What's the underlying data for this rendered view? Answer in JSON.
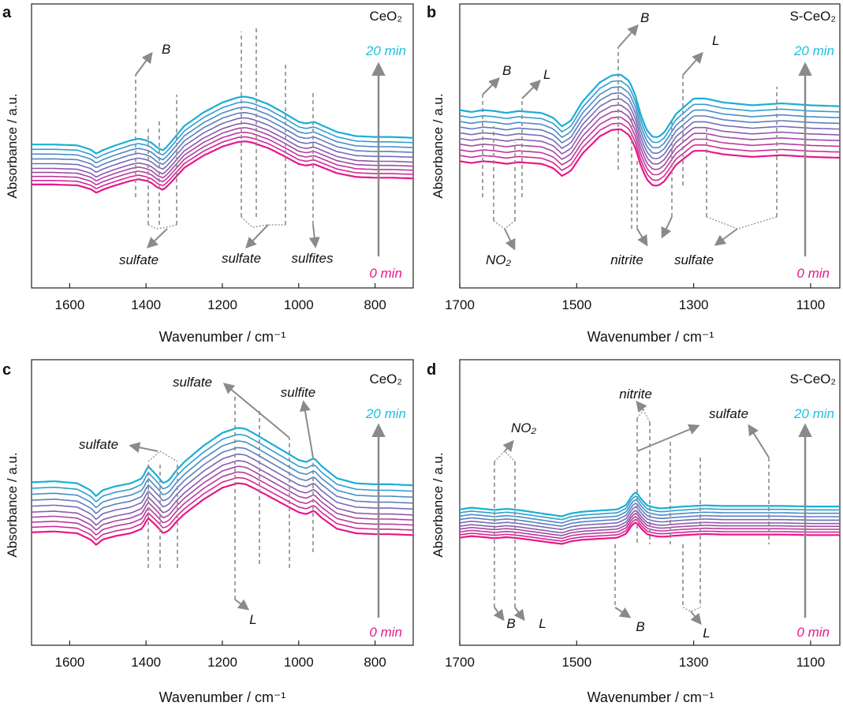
{
  "colors": {
    "first": "#e8178a",
    "last": "#1aaed6",
    "axis": "#222222",
    "annot": "#8a8a8a"
  },
  "chart_data": [
    {
      "panel_label": "a",
      "type": "line",
      "title": "CeO₂",
      "xlabel": "Wavenumber / cm⁻¹",
      "ylabel": "Absorbance / a.u.",
      "xlim": [
        1700,
        700
      ],
      "xticks": [
        1600,
        1400,
        1200,
        1000,
        800
      ],
      "n_series": 10,
      "series_top": "20 min",
      "series_bottom": "0 min",
      "base_profile": {
        "x": [
          1700,
          1640,
          1580,
          1545,
          1530,
          1515,
          1480,
          1440,
          1420,
          1400,
          1385,
          1370,
          1355,
          1340,
          1320,
          1300,
          1250,
          1200,
          1160,
          1140,
          1120,
          1080,
          1040,
          1000,
          980,
          960,
          940,
          900,
          850,
          800,
          760,
          700
        ],
        "y": [
          0.25,
          0.25,
          0.24,
          0.19,
          0.14,
          0.18,
          0.24,
          0.3,
          0.32,
          0.3,
          0.27,
          0.21,
          0.18,
          0.25,
          0.36,
          0.47,
          0.63,
          0.75,
          0.81,
          0.82,
          0.8,
          0.73,
          0.63,
          0.52,
          0.5,
          0.52,
          0.48,
          0.4,
          0.35,
          0.34,
          0.34,
          0.33
        ]
      },
      "series_offsets": [
        0,
        0.05,
        0.1,
        0.15,
        0.2,
        0.26,
        0.32,
        0.38,
        0.44,
        0.5
      ],
      "annotations": [
        {
          "text": "B"
        },
        {
          "text": "sulfate"
        },
        {
          "text": "sulfate"
        },
        {
          "text": "sulfites"
        }
      ]
    },
    {
      "panel_label": "b",
      "type": "line",
      "title": "S-CeO₂",
      "xlabel": "Wavenumber / cm⁻¹",
      "ylabel": "Absorbance / a.u.",
      "xlim": [
        1700,
        1050
      ],
      "xticks": [
        1700,
        1500,
        1300,
        1100
      ],
      "n_series": 10,
      "series_top": "20 min",
      "series_bottom": "0 min",
      "base_profile": {
        "x": [
          1700,
          1680,
          1660,
          1640,
          1620,
          1600,
          1580,
          1560,
          1540,
          1525,
          1510,
          1490,
          1460,
          1440,
          1425,
          1410,
          1400,
          1390,
          1380,
          1370,
          1360,
          1350,
          1330,
          1300,
          1280,
          1250,
          1200,
          1150,
          1100,
          1050
        ],
        "y": [
          0.46,
          0.44,
          0.46,
          0.45,
          0.43,
          0.45,
          0.44,
          0.43,
          0.38,
          0.29,
          0.35,
          0.55,
          0.75,
          0.82,
          0.83,
          0.76,
          0.62,
          0.4,
          0.25,
          0.18,
          0.18,
          0.23,
          0.42,
          0.58,
          0.58,
          0.54,
          0.51,
          0.53,
          0.51,
          0.5
        ]
      },
      "series_offsets": [
        0,
        0.06,
        0.12,
        0.18,
        0.24,
        0.3,
        0.36,
        0.42,
        0.48,
        0.54
      ],
      "annotations": [
        {
          "text": "B"
        },
        {
          "text": "L"
        },
        {
          "text": "B"
        },
        {
          "text": "L"
        },
        {
          "text": "NO₂"
        },
        {
          "text": "nitrite"
        },
        {
          "text": "sulfate"
        }
      ]
    },
    {
      "panel_label": "c",
      "type": "line",
      "title": "CeO₂",
      "xlabel": "Wavenumber / cm⁻¹",
      "ylabel": "Absorbance / a.u.",
      "xlim": [
        1700,
        700
      ],
      "xticks": [
        1600,
        1400,
        1200,
        1000,
        800
      ],
      "n_series": 10,
      "series_top": "20 min",
      "series_bottom": "0 min",
      "base_profile": {
        "x": [
          1700,
          1640,
          1580,
          1545,
          1530,
          1515,
          1480,
          1440,
          1410,
          1395,
          1385,
          1370,
          1355,
          1340,
          1320,
          1300,
          1250,
          1200,
          1160,
          1140,
          1120,
          1080,
          1040,
          1000,
          980,
          960,
          940,
          900,
          850,
          800,
          760,
          700
        ],
        "y": [
          0.46,
          0.47,
          0.45,
          0.38,
          0.32,
          0.38,
          0.42,
          0.45,
          0.5,
          0.62,
          0.58,
          0.52,
          0.45,
          0.48,
          0.58,
          0.66,
          0.82,
          0.95,
          1.0,
          0.99,
          0.95,
          0.86,
          0.77,
          0.68,
          0.66,
          0.7,
          0.62,
          0.5,
          0.45,
          0.44,
          0.44,
          0.43
        ]
      },
      "series_offsets": [
        0,
        0.05,
        0.1,
        0.15,
        0.2,
        0.26,
        0.32,
        0.38,
        0.44,
        0.5
      ],
      "annotations": [
        {
          "text": "sulfate"
        },
        {
          "text": "sulfate"
        },
        {
          "text": "sulfite"
        },
        {
          "text": "L"
        }
      ]
    },
    {
      "panel_label": "d",
      "type": "line",
      "title": "S-CeO₂",
      "xlabel": "Wavenumber / cm⁻¹",
      "ylabel": "Absorbance / a.u.",
      "xlim": [
        1700,
        1050
      ],
      "xticks": [
        1700,
        1500,
        1300,
        1100
      ],
      "n_series": 10,
      "series_top": "20 min",
      "series_bottom": "0 min",
      "base_profile": {
        "x": [
          1700,
          1680,
          1660,
          1640,
          1620,
          1600,
          1580,
          1560,
          1540,
          1525,
          1510,
          1490,
          1460,
          1430,
          1415,
          1405,
          1398,
          1390,
          1380,
          1370,
          1360,
          1350,
          1330,
          1300,
          1280,
          1250,
          1200,
          1150,
          1100,
          1050
        ],
        "y": [
          0.4,
          0.43,
          0.41,
          0.39,
          0.41,
          0.39,
          0.36,
          0.33,
          0.3,
          0.28,
          0.33,
          0.36,
          0.38,
          0.4,
          0.48,
          0.65,
          0.7,
          0.58,
          0.47,
          0.44,
          0.42,
          0.42,
          0.44,
          0.46,
          0.47,
          0.46,
          0.46,
          0.46,
          0.45,
          0.45
        ]
      },
      "series_offsets": [
        0,
        0.05,
        0.1,
        0.15,
        0.2,
        0.26,
        0.32,
        0.38,
        0.44,
        0.5
      ],
      "annotations": [
        {
          "text": "NO₂"
        },
        {
          "text": "nitrite"
        },
        {
          "text": "sulfate"
        },
        {
          "text": "B"
        },
        {
          "text": "L"
        },
        {
          "text": "B"
        },
        {
          "text": "L"
        }
      ]
    }
  ]
}
